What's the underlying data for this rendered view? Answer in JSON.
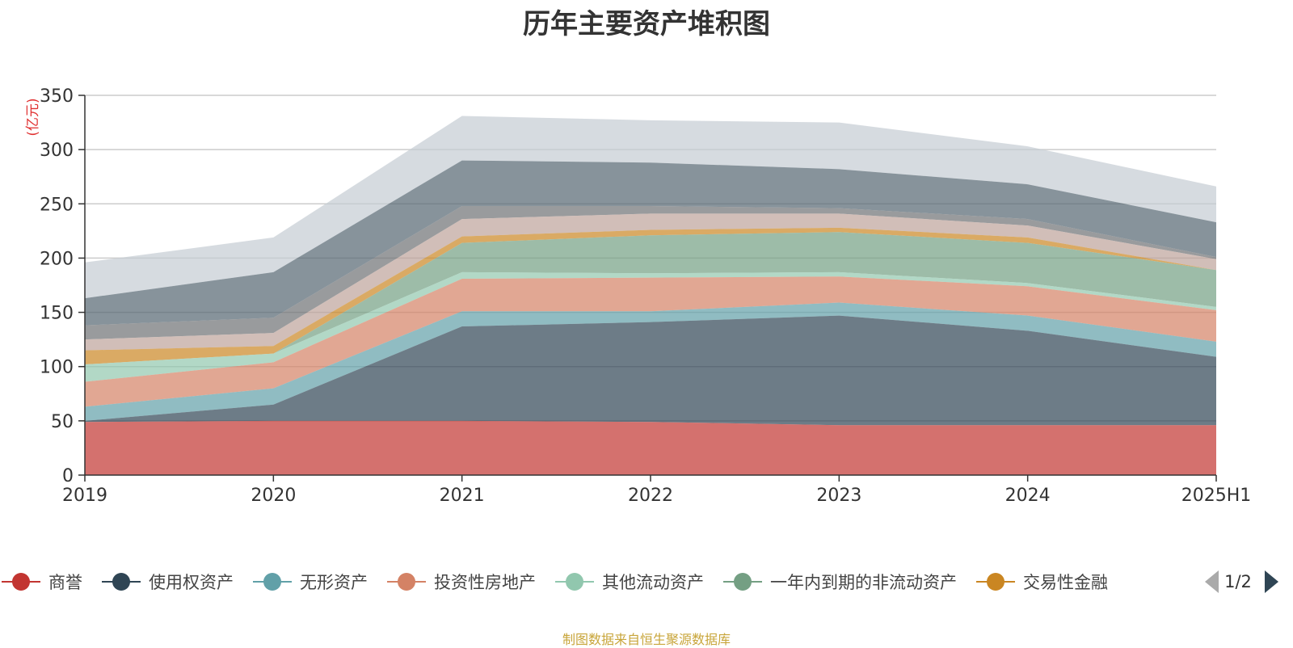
{
  "chart_data": {
    "type": "area",
    "title": "历年主要资产堆积图",
    "y_unit": "(亿元)",
    "categories": [
      "2019",
      "2020",
      "2021",
      "2022",
      "2023",
      "2024",
      "2025H1"
    ],
    "ylim": [
      0,
      350
    ],
    "yticks": [
      0,
      50,
      100,
      150,
      200,
      250,
      300,
      350
    ],
    "grid": true,
    "legend_position": "bottom",
    "stacked_totals": true,
    "series": [
      {
        "name": "商誉",
        "color": "#c23531",
        "values": [
          49,
          50,
          50,
          49,
          46,
          46,
          46
        ]
      },
      {
        "name": "使用权资产",
        "color": "#2f4554",
        "values": [
          50,
          65,
          137,
          141,
          147,
          133,
          109
        ]
      },
      {
        "name": "无形资产",
        "color": "#61a0a8",
        "values": [
          63,
          80,
          151,
          151,
          159,
          147,
          123
        ]
      },
      {
        "name": "投资性房地产",
        "color": "#d48265",
        "values": [
          86,
          104,
          181,
          182,
          183,
          174,
          152
        ]
      },
      {
        "name": "其他流动资产",
        "color": "#91c7ae",
        "values": [
          102,
          112,
          187,
          186,
          187,
          177,
          155
        ]
      },
      {
        "name": "一年内到期的非流动资产",
        "color": "#749f83",
        "values": [
          102,
          112,
          214,
          221,
          224,
          214,
          189
        ]
      },
      {
        "name": "交易性金融",
        "color": "#ca8622",
        "values": [
          115,
          119,
          220,
          226,
          228,
          219,
          189
        ]
      },
      {
        "name": "",
        "color": "#bda29a",
        "values": [
          125,
          131,
          236,
          241,
          241,
          230,
          199
        ]
      },
      {
        "name": "",
        "color": "#6e7074",
        "values": [
          138,
          145,
          248,
          248,
          246,
          236,
          201
        ]
      },
      {
        "name": "",
        "color": "#546570",
        "values": [
          163,
          187,
          290,
          288,
          282,
          268,
          233
        ]
      },
      {
        "name": "",
        "color": "#c4ccd3",
        "values": [
          196,
          219,
          331,
          327,
          325,
          303,
          266
        ]
      }
    ]
  },
  "legend": {
    "items": [
      {
        "label": "商誉",
        "color": "#c23531"
      },
      {
        "label": "使用权资产",
        "color": "#2f4554"
      },
      {
        "label": "无形资产",
        "color": "#61a0a8"
      },
      {
        "label": "投资性房地产",
        "color": "#d48265"
      },
      {
        "label": "其他流动资产",
        "color": "#91c7ae"
      },
      {
        "label": "一年内到期的非流动资产",
        "color": "#749f83"
      },
      {
        "label": "交易性金融",
        "color": "#ca8622"
      }
    ],
    "page_indicator": "1/2",
    "prev_icon": "triangle-left-icon",
    "next_icon": "triangle-right-icon"
  },
  "footer": {
    "note": "制图数据来自恒生聚源数据库"
  }
}
